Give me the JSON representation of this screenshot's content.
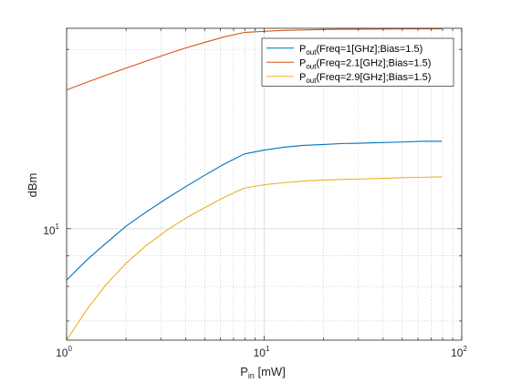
{
  "chart_data": {
    "type": "line",
    "xscale": "log",
    "yscale": "log",
    "xlim": [
      1,
      100
    ],
    "ylim": [
      6.5,
      21.7
    ],
    "grid": true,
    "minor_grid": true,
    "legend_position": "top-right",
    "xlabel": {
      "main": "P",
      "sub": "in",
      "rest": " [mW]"
    },
    "ylabel": "dBm",
    "x_ticks": [
      {
        "base": "10",
        "exp": "0"
      },
      {
        "base": "10",
        "exp": "1"
      },
      {
        "base": "10",
        "exp": "2"
      }
    ],
    "y_ticks": [
      {
        "value": 10,
        "base": "10",
        "exp": "1"
      }
    ],
    "series": [
      {
        "name": "P",
        "name_sub": "out",
        "name_rest": "(Freq=1[GHz];Bias=1.5)",
        "color": "#0072BD",
        "x": [
          1,
          1.26,
          1.58,
          2,
          2.51,
          3.16,
          3.98,
          5.01,
          6.31,
          7.94,
          10,
          12.6,
          15.8,
          20,
          25.1,
          31.6,
          39.8,
          50.1,
          63.1,
          79.4
        ],
        "y": [
          8.2,
          8.85,
          9.45,
          10.1,
          10.65,
          11.2,
          11.75,
          12.3,
          12.85,
          13.35,
          13.55,
          13.7,
          13.8,
          13.85,
          13.9,
          13.92,
          13.95,
          13.98,
          14.02,
          14.02
        ]
      },
      {
        "name": "P",
        "name_sub": "out",
        "name_rest": "(Freq=2.1[GHz];Bias=1.5)",
        "color": "#D95319",
        "x": [
          1,
          1.26,
          1.58,
          2,
          2.51,
          3.16,
          3.98,
          5.01,
          6.31,
          7.94,
          10,
          12.6,
          15.8,
          20,
          25.1,
          31.6,
          39.8,
          50.1,
          63.1,
          79.4
        ],
        "y": [
          17.1,
          17.6,
          18.1,
          18.6,
          19.1,
          19.6,
          20.1,
          20.55,
          21.0,
          21.35,
          21.45,
          21.52,
          21.56,
          21.6,
          21.62,
          21.63,
          21.64,
          21.65,
          21.66,
          21.66
        ]
      },
      {
        "name": "P",
        "name_sub": "out",
        "name_rest": "(Freq=2.9[GHz];Bias=1.5)",
        "color": "#EDB120",
        "x": [
          1,
          1.26,
          1.58,
          2,
          2.51,
          3.16,
          3.98,
          5.01,
          6.31,
          7.94,
          10,
          12.6,
          15.8,
          20,
          25.1,
          31.6,
          39.8,
          50.1,
          63.1,
          79.4
        ],
        "y": [
          6.5,
          7.3,
          8.05,
          8.75,
          9.35,
          9.9,
          10.4,
          10.85,
          11.3,
          11.7,
          11.85,
          11.95,
          12.02,
          12.07,
          12.1,
          12.12,
          12.15,
          12.18,
          12.2,
          12.22
        ]
      }
    ]
  }
}
